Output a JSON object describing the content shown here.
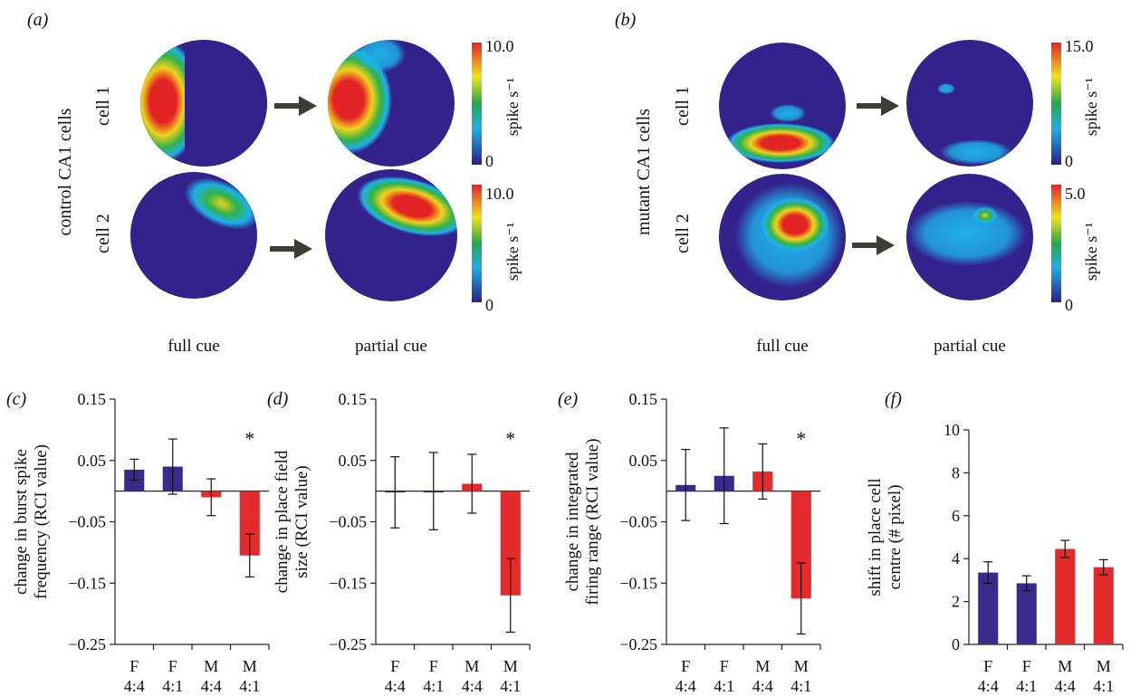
{
  "top": {
    "a": {
      "label": "(a)",
      "row_title": "control CA1 cells",
      "cells": [
        {
          "label": "cell 1",
          "colorbar": {
            "max": "10.0",
            "min": "0",
            "unit": "spike s⁻¹"
          }
        },
        {
          "label": "cell 2",
          "colorbar": {
            "max": "10.0",
            "min": "0",
            "unit": "spike s⁻¹"
          }
        }
      ],
      "col_labels": [
        "full cue",
        "partial cue"
      ]
    },
    "b": {
      "label": "(b)",
      "row_title": "mutant CA1 cells",
      "cells": [
        {
          "label": "cell 1",
          "colorbar": {
            "max": "15.0",
            "min": "0",
            "unit": "spike s⁻¹"
          }
        },
        {
          "label": "cell 2",
          "colorbar": {
            "max": "5.0",
            "min": "0",
            "unit": "spike s⁻¹"
          }
        }
      ],
      "col_labels": [
        "full cue",
        "partial cue"
      ]
    }
  },
  "colors": {
    "F": "#3a2a8c",
    "M": "#e32b2b",
    "map_background": "#33228c",
    "arrow": "#3d3d35"
  },
  "chart_data": [
    {
      "panel": "(c)",
      "type": "bar",
      "ylabel": [
        "change in burst spike",
        "frequency (RCI value)"
      ],
      "ylim": [
        -0.25,
        0.15
      ],
      "yticks": [
        "0.15",
        "0.05",
        "−0.05",
        "−0.15",
        "−0.25"
      ],
      "categories": [
        [
          "F",
          "4:4"
        ],
        [
          "F",
          "4:1"
        ],
        [
          "M",
          "4:4"
        ],
        [
          "M",
          "4:1"
        ]
      ],
      "groups": [
        "F",
        "F",
        "M",
        "M"
      ],
      "values": [
        0.035,
        0.04,
        -0.01,
        -0.105
      ],
      "errors": [
        0.017,
        0.045,
        0.03,
        0.035
      ],
      "annotation": "*"
    },
    {
      "panel": "(d)",
      "type": "bar",
      "ylabel": [
        "change in place field",
        "size (RCI value)"
      ],
      "ylim": [
        -0.25,
        0.15
      ],
      "yticks": [
        "0.15",
        "0.05",
        "−0.05",
        "−0.15",
        "−0.25"
      ],
      "categories": [
        [
          "F",
          "4:4"
        ],
        [
          "F",
          "4:1"
        ],
        [
          "M",
          "4:4"
        ],
        [
          "M",
          "4:1"
        ]
      ],
      "groups": [
        "F",
        "F",
        "M",
        "M"
      ],
      "values": [
        -0.002,
        0.0,
        0.012,
        -0.17
      ],
      "errors": [
        0.058,
        0.063,
        0.048,
        0.06
      ],
      "annotation": "*"
    },
    {
      "panel": "(e)",
      "type": "bar",
      "ylabel": [
        "change in integrated",
        "firing range (RCI value)"
      ],
      "ylim": [
        -0.25,
        0.15
      ],
      "yticks": [
        "0.15",
        "0.05",
        "−0.05",
        "−0.15",
        "−0.25"
      ],
      "categories": [
        [
          "F",
          "4:4"
        ],
        [
          "F",
          "4:1"
        ],
        [
          "M",
          "4:4"
        ],
        [
          "M",
          "4:1"
        ]
      ],
      "groups": [
        "F",
        "F",
        "M",
        "M"
      ],
      "values": [
        0.01,
        0.025,
        0.032,
        -0.175
      ],
      "errors": [
        0.058,
        0.078,
        0.045,
        0.058
      ],
      "annotation": "*"
    },
    {
      "panel": "(f)",
      "type": "bar",
      "ylabel": [
        "shift in place cell",
        "centre (# pixel)"
      ],
      "ylim": [
        0,
        10
      ],
      "yticks": [
        "10",
        "8",
        "6",
        "4",
        "2",
        "0"
      ],
      "categories": [
        [
          "F",
          "4:4"
        ],
        [
          "F",
          "4:1"
        ],
        [
          "M",
          "4:4"
        ],
        [
          "M",
          "4:1"
        ]
      ],
      "groups": [
        "F",
        "F",
        "M",
        "M"
      ],
      "values": [
        3.35,
        2.85,
        4.45,
        3.6
      ],
      "errors": [
        0.5,
        0.35,
        0.4,
        0.35
      ],
      "annotation": ""
    }
  ]
}
